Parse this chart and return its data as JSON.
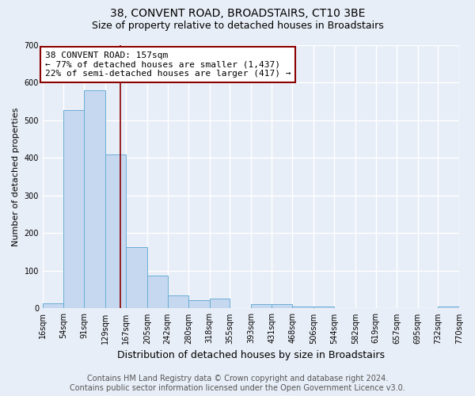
{
  "title": "38, CONVENT ROAD, BROADSTAIRS, CT10 3BE",
  "subtitle": "Size of property relative to detached houses in Broadstairs",
  "xlabel": "Distribution of detached houses by size in Broadstairs",
  "ylabel": "Number of detached properties",
  "footer_line1": "Contains HM Land Registry data © Crown copyright and database right 2024.",
  "footer_line2": "Contains public sector information licensed under the Open Government Licence v3.0.",
  "bin_edges": [
    16,
    54,
    91,
    129,
    167,
    205,
    242,
    280,
    318,
    355,
    393,
    431,
    468,
    506,
    544,
    582,
    619,
    657,
    695,
    732,
    770
  ],
  "bin_labels": [
    "16sqm",
    "54sqm",
    "91sqm",
    "129sqm",
    "167sqm",
    "205sqm",
    "242sqm",
    "280sqm",
    "318sqm",
    "355sqm",
    "393sqm",
    "431sqm",
    "468sqm",
    "506sqm",
    "544sqm",
    "582sqm",
    "619sqm",
    "657sqm",
    "695sqm",
    "732sqm",
    "770sqm"
  ],
  "bar_heights": [
    13,
    527,
    580,
    408,
    163,
    87,
    35,
    22,
    26,
    0,
    12,
    12,
    5,
    5,
    0,
    0,
    0,
    0,
    0,
    5
  ],
  "bar_color": "#c5d8f0",
  "bar_edge_color": "#6baed6",
  "vline_x": 157,
  "vline_color": "#8b0000",
  "annotation_line1": "38 CONVENT ROAD: 157sqm",
  "annotation_line2": "← 77% of detached houses are smaller (1,437)",
  "annotation_line3": "22% of semi-detached houses are larger (417) →",
  "annotation_box_color": "white",
  "annotation_box_edge_color": "#8b0000",
  "ylim": [
    0,
    700
  ],
  "yticks": [
    0,
    100,
    200,
    300,
    400,
    500,
    600,
    700
  ],
  "xlim": [
    16,
    770
  ],
  "background_color": "#e8eef7",
  "grid_color": "white",
  "title_fontsize": 10,
  "subtitle_fontsize": 9,
  "xlabel_fontsize": 9,
  "ylabel_fontsize": 8,
  "tick_fontsize": 7,
  "annotation_fontsize": 8,
  "footer_fontsize": 7
}
